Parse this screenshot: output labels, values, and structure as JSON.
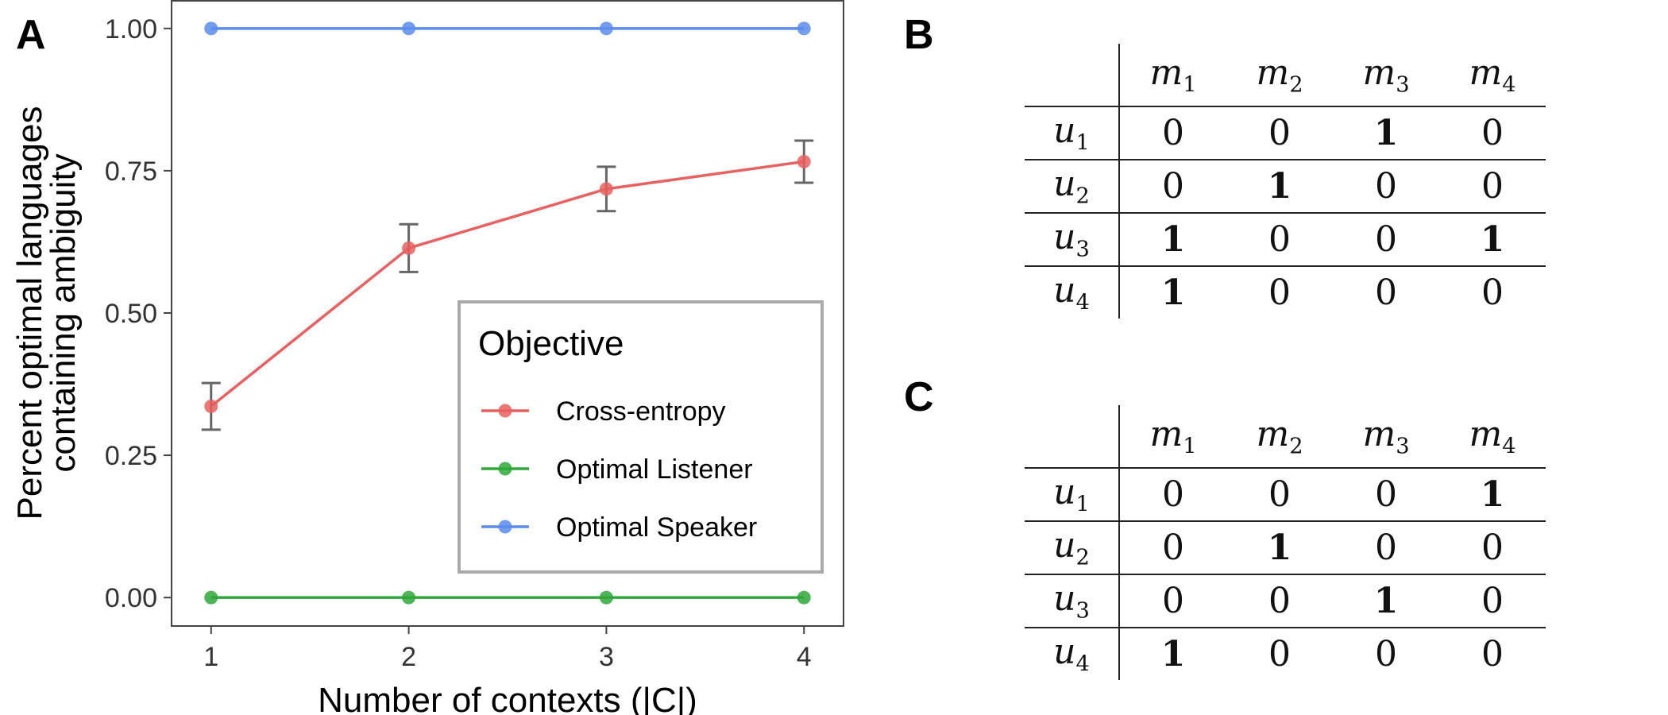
{
  "panels": {
    "a": "A",
    "b": "B",
    "c": "C"
  },
  "chart_data": {
    "type": "line",
    "xlabel": "Number of contexts (|C|)",
    "ylabel_lines": [
      "Percent optimal languages",
      "containing ambiguity"
    ],
    "x": [
      1,
      2,
      3,
      4
    ],
    "xlim": [
      0.8,
      4.2
    ],
    "ylim": [
      -0.05,
      1.05
    ],
    "y_ticks": [
      0.0,
      0.25,
      0.5,
      0.75,
      1.0
    ],
    "y_tick_labels": [
      "0.00",
      "0.25",
      "0.50",
      "0.75",
      "1.00"
    ],
    "x_tick_labels": [
      "1",
      "2",
      "3",
      "4"
    ],
    "legend": {
      "title": "Objective",
      "position": "bottom-right-inside"
    },
    "series": [
      {
        "name": "Cross-entropy",
        "color": "#e8605f",
        "values": [
          0.336,
          0.614,
          0.718,
          0.766
        ],
        "err_low": [
          0.295,
          0.572,
          0.679,
          0.729
        ],
        "err_high": [
          0.377,
          0.656,
          0.757,
          0.803
        ]
      },
      {
        "name": "Optimal Listener",
        "color": "#2fa83a",
        "values": [
          0.0,
          0.0,
          0.0,
          0.0
        ]
      },
      {
        "name": "Optimal Speaker",
        "color": "#5a8ded",
        "values": [
          1.0,
          1.0,
          1.0,
          1.0
        ]
      }
    ]
  },
  "table_b": {
    "cols": [
      {
        "l": "m",
        "s": "1"
      },
      {
        "l": "m",
        "s": "2"
      },
      {
        "l": "m",
        "s": "3"
      },
      {
        "l": "m",
        "s": "4"
      }
    ],
    "rows": [
      {
        "l": "u",
        "s": "1",
        "cells": [
          "0",
          "0",
          "1",
          "0"
        ],
        "bold": [
          false,
          false,
          true,
          false
        ]
      },
      {
        "l": "u",
        "s": "2",
        "cells": [
          "0",
          "1",
          "0",
          "0"
        ],
        "bold": [
          false,
          true,
          false,
          false
        ]
      },
      {
        "l": "u",
        "s": "3",
        "cells": [
          "1",
          "0",
          "0",
          "1"
        ],
        "bold": [
          true,
          false,
          false,
          true
        ]
      },
      {
        "l": "u",
        "s": "4",
        "cells": [
          "1",
          "0",
          "0",
          "0"
        ],
        "bold": [
          true,
          false,
          false,
          false
        ]
      }
    ]
  },
  "table_c": {
    "cols": [
      {
        "l": "m",
        "s": "1"
      },
      {
        "l": "m",
        "s": "2"
      },
      {
        "l": "m",
        "s": "3"
      },
      {
        "l": "m",
        "s": "4"
      }
    ],
    "rows": [
      {
        "l": "u",
        "s": "1",
        "cells": [
          "0",
          "0",
          "0",
          "1"
        ],
        "bold": [
          false,
          false,
          false,
          true
        ]
      },
      {
        "l": "u",
        "s": "2",
        "cells": [
          "0",
          "1",
          "0",
          "0"
        ],
        "bold": [
          false,
          true,
          false,
          false
        ]
      },
      {
        "l": "u",
        "s": "3",
        "cells": [
          "0",
          "0",
          "1",
          "0"
        ],
        "bold": [
          false,
          false,
          true,
          false
        ]
      },
      {
        "l": "u",
        "s": "4",
        "cells": [
          "1",
          "0",
          "0",
          "0"
        ],
        "bold": [
          true,
          false,
          false,
          false
        ]
      }
    ]
  }
}
